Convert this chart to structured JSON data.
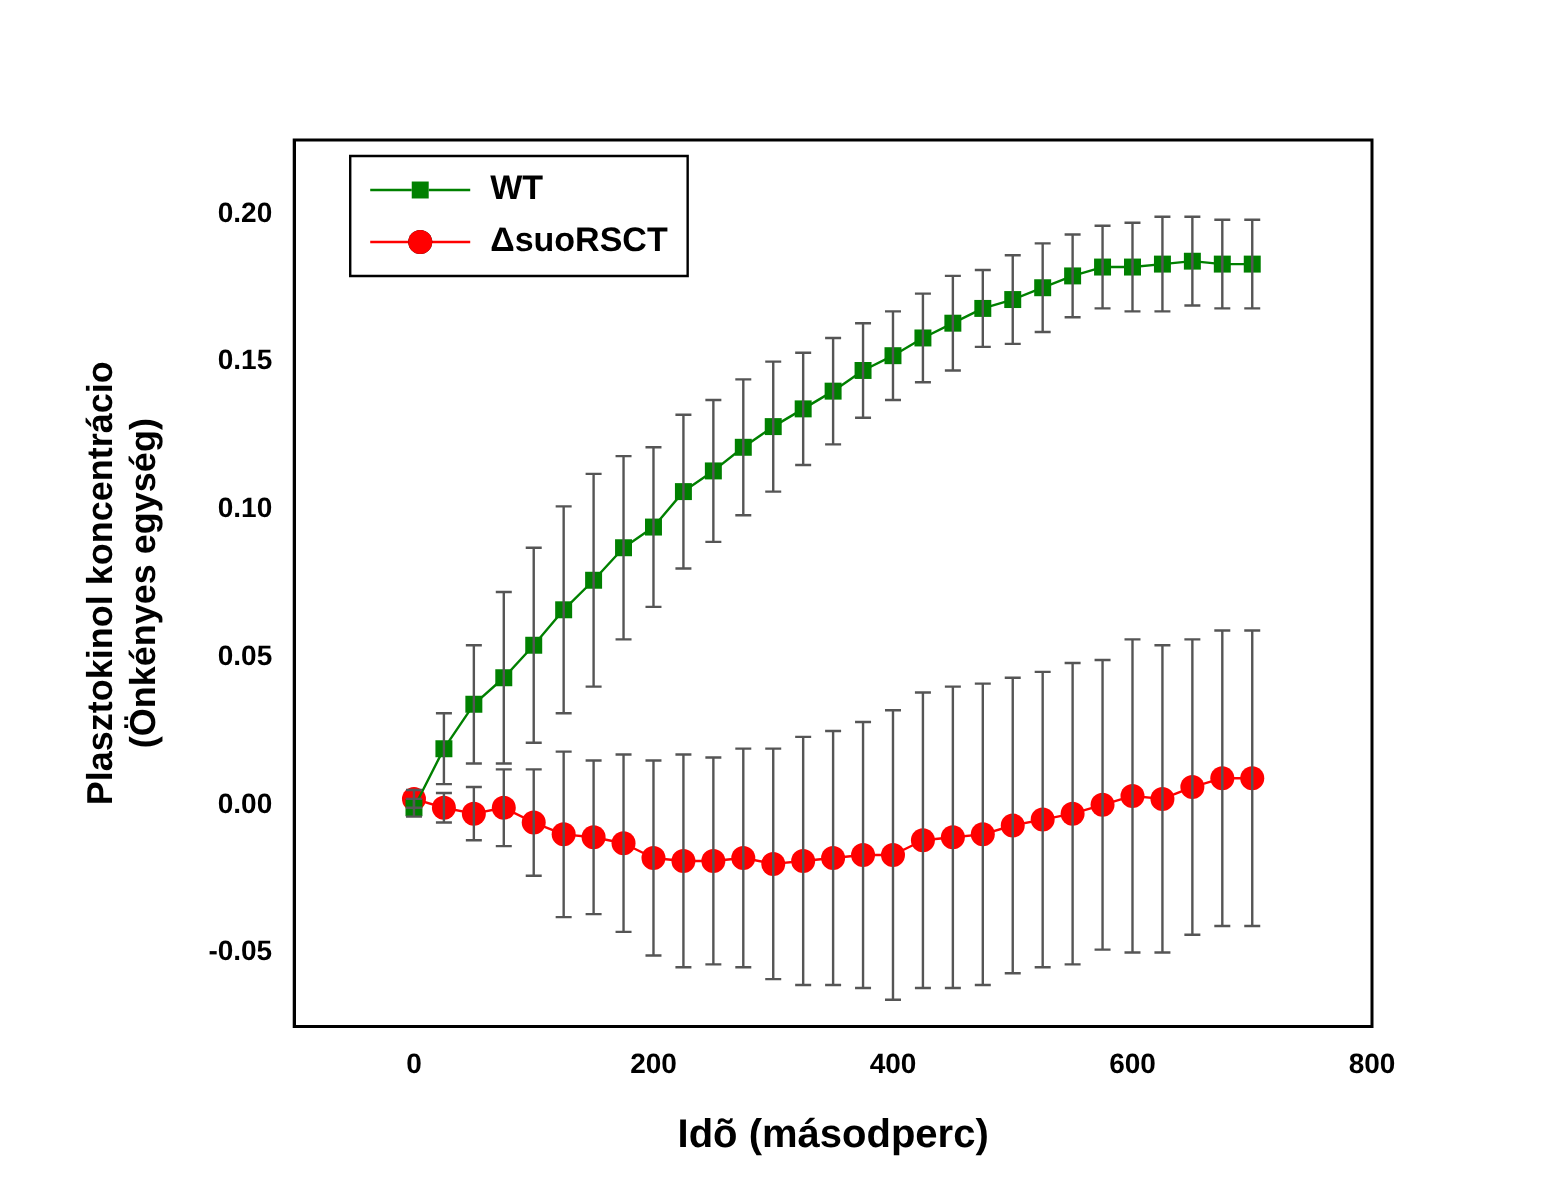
{
  "chart_data": {
    "type": "line",
    "xlabel": "Idõ (másodperc)",
    "ylabel": "Plasztokinol koncentrácio\n(Önkényes egység)",
    "x": [
      0,
      25,
      50,
      75,
      100,
      125,
      150,
      175,
      200,
      225,
      250,
      275,
      300,
      325,
      350,
      375,
      400,
      425,
      450,
      475,
      500,
      525,
      550,
      575,
      600,
      625,
      650,
      675,
      700
    ],
    "series": [
      {
        "name": "WT",
        "color": "#008000",
        "marker": "square",
        "values": [
          -0.001,
          0.019,
          0.034,
          0.043,
          0.054,
          0.066,
          0.076,
          0.087,
          0.094,
          0.106,
          0.113,
          0.121,
          0.128,
          0.134,
          0.14,
          0.147,
          0.152,
          0.158,
          0.163,
          0.168,
          0.171,
          0.175,
          0.179,
          0.182,
          0.182,
          0.183,
          0.184,
          0.183,
          0.183
        ],
        "errors": [
          0.003,
          0.012,
          0.02,
          0.029,
          0.033,
          0.035,
          0.036,
          0.031,
          0.027,
          0.026,
          0.024,
          0.023,
          0.022,
          0.019,
          0.018,
          0.016,
          0.015,
          0.015,
          0.016,
          0.013,
          0.015,
          0.015,
          0.014,
          0.014,
          0.015,
          0.016,
          0.015,
          0.015,
          0.015
        ]
      },
      {
        "name": "ΔsuoRSCT",
        "color": "#ff0000",
        "marker": "circle",
        "values": [
          0.002,
          -0.001,
          -0.003,
          -0.001,
          -0.006,
          -0.01,
          -0.011,
          -0.013,
          -0.018,
          -0.019,
          -0.019,
          -0.018,
          -0.02,
          -0.019,
          -0.018,
          -0.017,
          -0.017,
          -0.012,
          -0.011,
          -0.01,
          -0.007,
          -0.005,
          -0.003,
          0.0,
          0.003,
          0.002,
          0.006,
          0.009,
          0.009
        ],
        "errors": [
          0.003,
          0.005,
          0.009,
          0.013,
          0.018,
          0.028,
          0.026,
          0.03,
          0.033,
          0.036,
          0.035,
          0.037,
          0.039,
          0.042,
          0.043,
          0.045,
          0.049,
          0.05,
          0.051,
          0.051,
          0.05,
          0.05,
          0.051,
          0.049,
          0.053,
          0.052,
          0.05,
          0.05,
          0.05
        ]
      }
    ],
    "xlim": [
      -100,
      800
    ],
    "xticks": [
      0,
      200,
      400,
      600,
      800
    ],
    "ylim": [
      -0.075,
      0.225
    ],
    "yticks": [
      {
        "value": -0.05,
        "label": "-0.05"
      },
      {
        "value": 0,
        "label": "0.00"
      },
      {
        "value": 0.05,
        "label": "0.05"
      },
      {
        "value": 0.1,
        "label": "0.10"
      },
      {
        "value": 0.15,
        "label": "0.15"
      },
      {
        "value": 0.2,
        "label": "0.20"
      }
    ],
    "grid": false,
    "legend": "top left"
  }
}
